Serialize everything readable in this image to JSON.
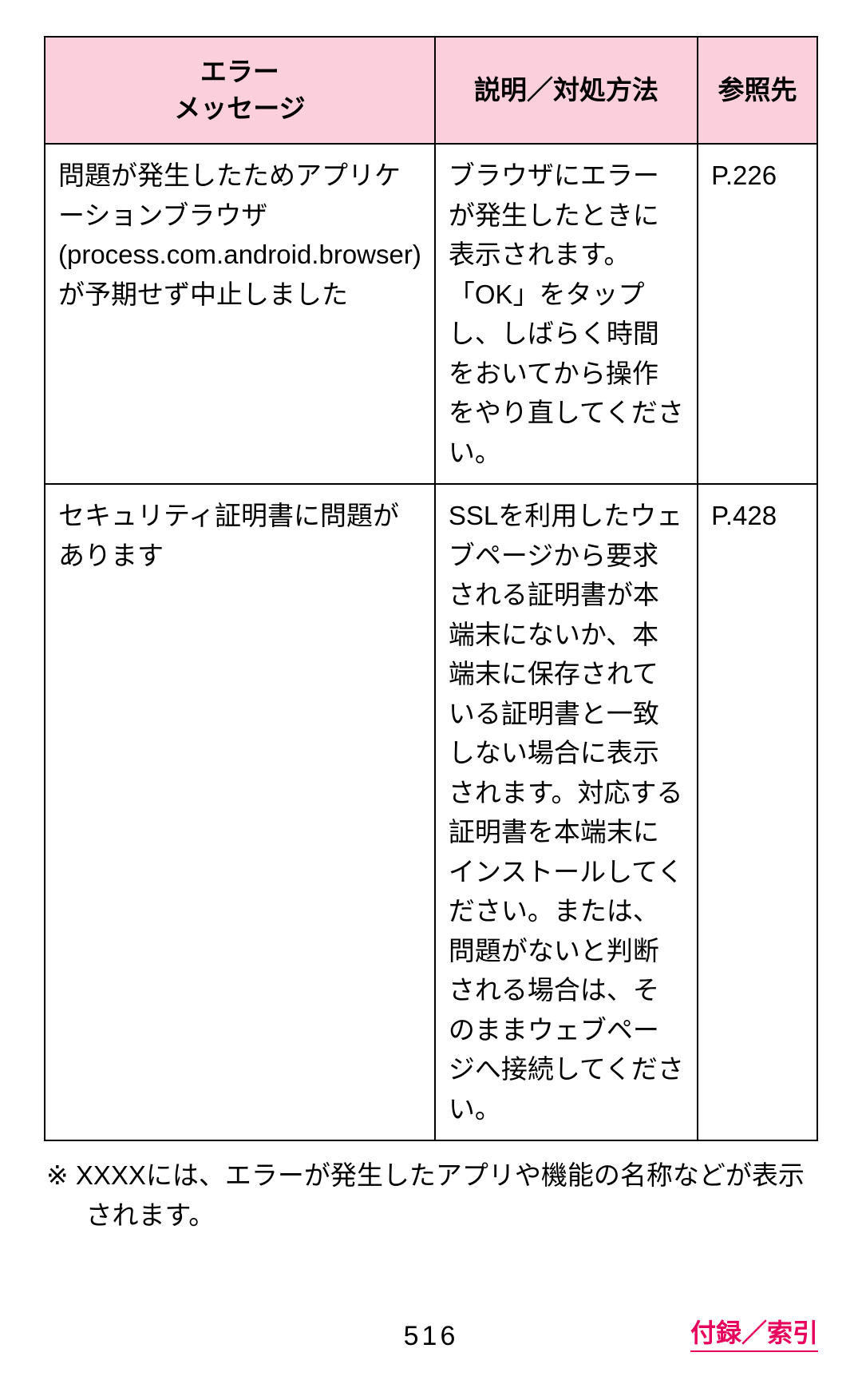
{
  "table": {
    "header_bg_color": "#fbd0dc",
    "border_color": "#000000",
    "headers": {
      "error": "エラー\nメッセージ",
      "description": "説明／対処方法",
      "reference": "参照先"
    },
    "rows": [
      {
        "error": "問題が発生したためアプリケーションブラウザ(process.com.android.browser)が予期せず中止しました",
        "description": "ブラウザにエラーが発生したときに表示されます。「OK」をタップし、しばらく時間をおいてから操作をやり直してください。",
        "reference": "P.226"
      },
      {
        "error": "セキュリティ証明書に問題があります",
        "description": "SSLを利用したウェブページから要求される証明書が本端末にないか、本端末に保存されている証明書と一致しない場合に表示されます。対応する証明書を本端末にインストールしてください。または、問題がないと判断される場合は、そのままウェブページへ接続してください。",
        "reference": "P.428"
      }
    ]
  },
  "note_text": "※ XXXXには、エラーが発生したアプリや機能の名称などが表示されます。",
  "page_number": "516",
  "appendix_link": "付録／索引",
  "appendix_link_color": "#e6005c"
}
